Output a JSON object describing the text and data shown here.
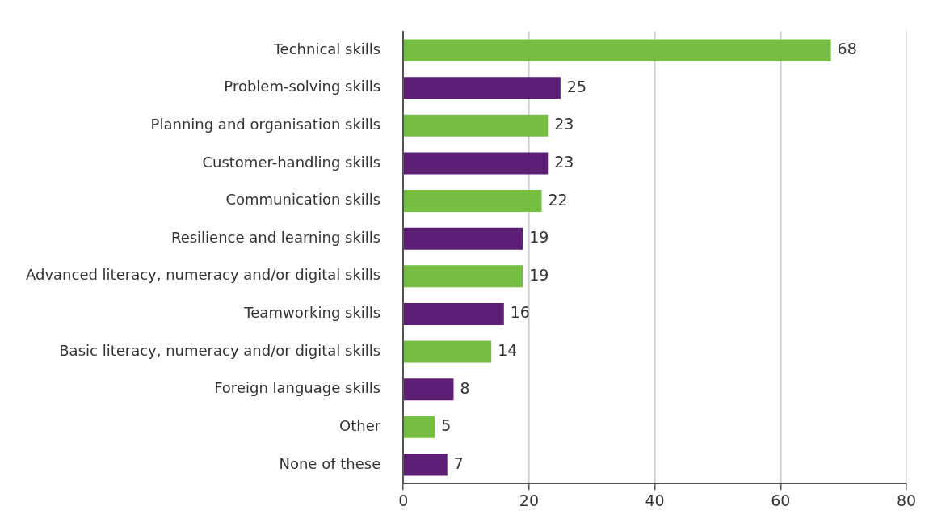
{
  "chart_data": {
    "type": "bar",
    "orientation": "horizontal",
    "categories": [
      "Technical skills",
      "Problem-solving skills",
      "Planning and organisation skills",
      "Customer-handling skills",
      "Communication skills",
      "Resilience and learning skills",
      "Advanced literacy, numeracy and/or digital skills",
      "Teamworking skills",
      "Basic literacy, numeracy and/or digital skills",
      "Foreign language skills",
      "Other",
      "None of these"
    ],
    "values": [
      68,
      25,
      23,
      23,
      22,
      19,
      19,
      16,
      14,
      8,
      5,
      7
    ],
    "colors": [
      "#76bf43",
      "#5c1f75",
      "#76bf43",
      "#5c1f75",
      "#76bf43",
      "#5c1f75",
      "#76bf43",
      "#5c1f75",
      "#76bf43",
      "#5c1f75",
      "#76bf43",
      "#5c1f75"
    ],
    "xlim": [
      0,
      80
    ],
    "xticks": [
      0,
      20,
      40,
      60,
      80
    ],
    "grid": "x",
    "data_labels": true
  }
}
